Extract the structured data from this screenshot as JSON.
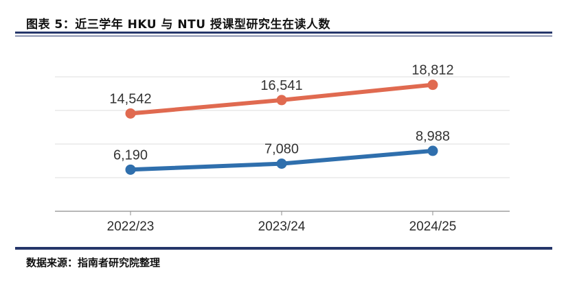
{
  "header": {
    "title": "图表 5：近三学年 HKU 与 NTU 授课型研究生在读人数"
  },
  "footer": {
    "source": "数据来源：指南者研究院整理"
  },
  "colors": {
    "rule": "#25366a",
    "series_a": "#e06a50",
    "series_b": "#2f6fad",
    "grid": "#dcdcdc"
  },
  "chart_data": {
    "type": "line",
    "title": "图表 5：近三学年 HKU 与 NTU 授课型研究生在读人数",
    "categories": [
      "2022/23",
      "2023/24",
      "2024/25"
    ],
    "series": [
      {
        "values": [
          14542,
          16541,
          18812
        ],
        "labels": [
          "14,542",
          "16,541",
          "18,812"
        ],
        "color": "#e06a50"
      },
      {
        "values": [
          6190,
          7080,
          8988
        ],
        "labels": [
          "6,190",
          "7,080",
          "8,988"
        ],
        "color": "#2f6fad"
      }
    ],
    "ylim": [
      0,
      20000
    ],
    "grid": true,
    "legend": "none",
    "xlabel": "",
    "ylabel": ""
  }
}
